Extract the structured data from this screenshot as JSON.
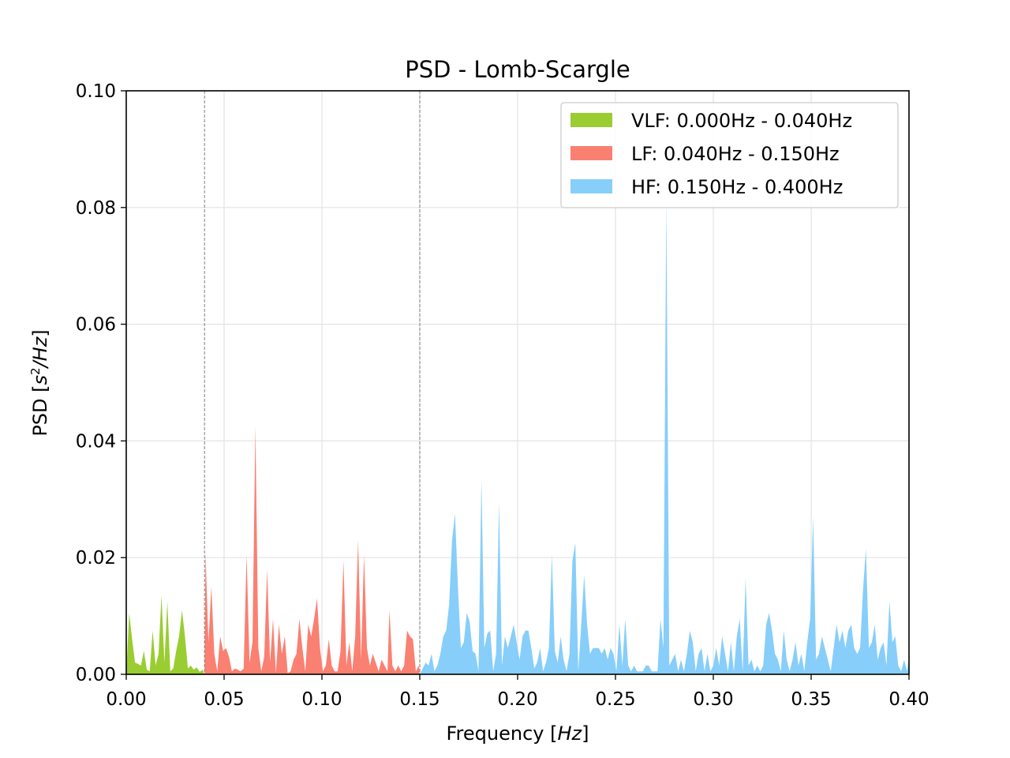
{
  "chart_data": {
    "type": "area",
    "title": "PSD - Lomb-Scargle",
    "xlabel_prefix": "Frequency [",
    "xlabel_unit": "Hz",
    "xlabel_suffix": "]",
    "ylabel_prefix": "PSD [",
    "ylabel_unit_base": "s",
    "ylabel_unit_exp": "2",
    "ylabel_unit_rest": "/Hz",
    "ylabel_suffix": "]",
    "xlim": [
      0.0,
      0.4
    ],
    "ylim": [
      0.0,
      0.1
    ],
    "x_ticks": [
      "0.00",
      "0.05",
      "0.10",
      "0.15",
      "0.20",
      "0.25",
      "0.30",
      "0.35",
      "0.40"
    ],
    "y_ticks": [
      "0.00",
      "0.02",
      "0.04",
      "0.06",
      "0.08",
      "0.10"
    ],
    "grid": true,
    "legend_position": "top-right",
    "band_boundaries": [
      0.04,
      0.15
    ],
    "series": [
      {
        "name": "VLF: 0.000Hz - 0.040Hz",
        "color": "#9acd32",
        "points": [
          [
            0.0,
            0.0
          ],
          [
            0.0015,
            0.0105
          ],
          [
            0.003,
            0.006
          ],
          [
            0.0045,
            0.002
          ],
          [
            0.006,
            0.0018
          ],
          [
            0.0075,
            0.0015
          ],
          [
            0.009,
            0.004
          ],
          [
            0.0105,
            0.0008
          ],
          [
            0.012,
            0.0005
          ],
          [
            0.0135,
            0.0075
          ],
          [
            0.015,
            0.0015
          ],
          [
            0.0165,
            0.0035
          ],
          [
            0.018,
            0.0135
          ],
          [
            0.0195,
            0.002
          ],
          [
            0.021,
            0.0125
          ],
          [
            0.0225,
            0.0005
          ],
          [
            0.024,
            0.001
          ],
          [
            0.0255,
            0.004
          ],
          [
            0.027,
            0.0065
          ],
          [
            0.0285,
            0.011
          ],
          [
            0.03,
            0.0065
          ],
          [
            0.0315,
            0.001
          ],
          [
            0.033,
            0.0015
          ],
          [
            0.0345,
            0.0008
          ],
          [
            0.036,
            0.0012
          ],
          [
            0.0375,
            0.0004
          ],
          [
            0.039,
            0.0008
          ],
          [
            0.04,
            0.0
          ]
        ]
      },
      {
        "name": "LF: 0.040Hz - 0.150Hz",
        "color": "#fa8072",
        "points": [
          [
            0.04,
            0.0
          ],
          [
            0.0405,
            0.021
          ],
          [
            0.042,
            0.0055
          ],
          [
            0.0435,
            0.015
          ],
          [
            0.045,
            0.0035
          ],
          [
            0.0465,
            0.0005
          ],
          [
            0.048,
            0.0065
          ],
          [
            0.0495,
            0.004
          ],
          [
            0.051,
            0.0045
          ],
          [
            0.0525,
            0.003
          ],
          [
            0.054,
            0.0005
          ],
          [
            0.0555,
            0.001
          ],
          [
            0.057,
            0.0008
          ],
          [
            0.0585,
            0.0005
          ],
          [
            0.06,
            0.001
          ],
          [
            0.0615,
            0.0205
          ],
          [
            0.063,
            0.002
          ],
          [
            0.0645,
            0.0055
          ],
          [
            0.066,
            0.0425
          ],
          [
            0.0675,
            0.0045
          ],
          [
            0.069,
            0.0005
          ],
          [
            0.0705,
            0.003
          ],
          [
            0.072,
            0.018
          ],
          [
            0.0735,
            0.002
          ],
          [
            0.075,
            0.0095
          ],
          [
            0.0765,
            0.0002
          ],
          [
            0.078,
            0.0085
          ],
          [
            0.0795,
            0.0035
          ],
          [
            0.081,
            0.0065
          ],
          [
            0.0825,
            0.0002
          ],
          [
            0.084,
            0.0005
          ],
          [
            0.0855,
            0.0025
          ],
          [
            0.087,
            0.0035
          ],
          [
            0.0885,
            0.0095
          ],
          [
            0.09,
            0.0045
          ],
          [
            0.0915,
            0.0005
          ],
          [
            0.093,
            0.0085
          ],
          [
            0.0945,
            0.0065
          ],
          [
            0.096,
            0.0095
          ],
          [
            0.0975,
            0.013
          ],
          [
            0.099,
            0.0045
          ],
          [
            0.1005,
            0.0005
          ],
          [
            0.102,
            0.0015
          ],
          [
            0.1035,
            0.006
          ],
          [
            0.105,
            0.0015
          ],
          [
            0.1065,
            0.0005
          ],
          [
            0.108,
            0.0005
          ],
          [
            0.1095,
            0.004
          ],
          [
            0.111,
            0.0195
          ],
          [
            0.1125,
            0.0015
          ],
          [
            0.114,
            0.0055
          ],
          [
            0.1155,
            0.0005
          ],
          [
            0.117,
            0.0065
          ],
          [
            0.1185,
            0.023
          ],
          [
            0.12,
            0.0025
          ],
          [
            0.1215,
            0.0205
          ],
          [
            0.123,
            0.0045
          ],
          [
            0.1245,
            0.0015
          ],
          [
            0.126,
            0.0035
          ],
          [
            0.1275,
            0.002
          ],
          [
            0.129,
            0.0005
          ],
          [
            0.1305,
            0.0025
          ],
          [
            0.132,
            0.0015
          ],
          [
            0.1335,
            0.0005
          ],
          [
            0.1345,
            0.011
          ],
          [
            0.136,
            0.0015
          ],
          [
            0.1375,
            0.0005
          ],
          [
            0.139,
            0.0015
          ],
          [
            0.1405,
            0.0005
          ],
          [
            0.142,
            0.0015
          ],
          [
            0.1435,
            0.0075
          ],
          [
            0.145,
            0.0065
          ],
          [
            0.1465,
            0.006
          ],
          [
            0.148,
            0.0005
          ],
          [
            0.1495,
            0.0015
          ],
          [
            0.15,
            0.0
          ]
        ]
      },
      {
        "name": "HF: 0.150Hz - 0.400Hz",
        "color": "#87cefa",
        "points": [
          [
            0.15,
            0.0
          ],
          [
            0.1515,
            0.001
          ],
          [
            0.153,
            0.002
          ],
          [
            0.1545,
            0.0015
          ],
          [
            0.156,
            0.0035
          ],
          [
            0.1575,
            0.0005
          ],
          [
            0.159,
            0.0015
          ],
          [
            0.1605,
            0.0035
          ],
          [
            0.162,
            0.0065
          ],
          [
            0.1635,
            0.0075
          ],
          [
            0.165,
            0.012
          ],
          [
            0.1665,
            0.023
          ],
          [
            0.168,
            0.0275
          ],
          [
            0.1695,
            0.015
          ],
          [
            0.171,
            0.0045
          ],
          [
            0.1725,
            0.0055
          ],
          [
            0.174,
            0.0105
          ],
          [
            0.1755,
            0.009
          ],
          [
            0.177,
            0.004
          ],
          [
            0.1785,
            0.0035
          ],
          [
            0.18,
            0.0005
          ],
          [
            0.1815,
            0.0335
          ],
          [
            0.183,
            0.0045
          ],
          [
            0.1845,
            0.007
          ],
          [
            0.186,
            0.0075
          ],
          [
            0.1875,
            0.0005
          ],
          [
            0.189,
            0.0035
          ],
          [
            0.1905,
            0.0295
          ],
          [
            0.192,
            0.0015
          ],
          [
            0.1935,
            0.0065
          ],
          [
            0.195,
            0.0045
          ],
          [
            0.1965,
            0.0065
          ],
          [
            0.198,
            0.0085
          ],
          [
            0.1995,
            0.0055
          ],
          [
            0.201,
            0.0025
          ],
          [
            0.2025,
            0.0065
          ],
          [
            0.204,
            0.0075
          ],
          [
            0.2055,
            0.0075
          ],
          [
            0.207,
            0.0045
          ],
          [
            0.2085,
            0.001
          ],
          [
            0.21,
            0.002
          ],
          [
            0.2115,
            0.0045
          ],
          [
            0.213,
            0.0005
          ],
          [
            0.2145,
            0.002
          ],
          [
            0.216,
            0.0045
          ],
          [
            0.2175,
            0.0205
          ],
          [
            0.219,
            0.004
          ],
          [
            0.2205,
            0.002
          ],
          [
            0.222,
            0.0065
          ],
          [
            0.2235,
            0.0025
          ],
          [
            0.225,
            0.0005
          ],
          [
            0.2265,
            0.0035
          ],
          [
            0.228,
            0.0195
          ],
          [
            0.2295,
            0.0225
          ],
          [
            0.231,
            0.0005
          ],
          [
            0.2325,
            0.0085
          ],
          [
            0.234,
            0.017
          ],
          [
            0.2355,
            0.0085
          ],
          [
            0.237,
            0.0035
          ],
          [
            0.2385,
            0.0045
          ],
          [
            0.24,
            0.0045
          ],
          [
            0.2415,
            0.0045
          ],
          [
            0.243,
            0.0035
          ],
          [
            0.2445,
            0.0045
          ],
          [
            0.246,
            0.0025
          ],
          [
            0.2475,
            0.0045
          ],
          [
            0.249,
            0.0035
          ],
          [
            0.2505,
            0.0005
          ],
          [
            0.252,
            0.0085
          ],
          [
            0.2535,
            0.0015
          ],
          [
            0.255,
            0.0095
          ],
          [
            0.2565,
            0.0015
          ],
          [
            0.258,
            0.0005
          ],
          [
            0.2595,
            0.0015
          ],
          [
            0.261,
            0.0005
          ],
          [
            0.2625,
            0.0005
          ],
          [
            0.264,
            0.0005
          ],
          [
            0.2655,
            0.0015
          ],
          [
            0.267,
            0.0015
          ],
          [
            0.2685,
            0.0005
          ],
          [
            0.27,
            0.0005
          ],
          [
            0.2715,
            0.0005
          ],
          [
            0.273,
            0.0095
          ],
          [
            0.2745,
            0.0045
          ],
          [
            0.276,
            0.0815
          ],
          [
            0.2775,
            0.0015
          ],
          [
            0.279,
            0.0025
          ],
          [
            0.2805,
            0.0035
          ],
          [
            0.282,
            0.0005
          ],
          [
            0.2835,
            0.0025
          ],
          [
            0.285,
            0.0005
          ],
          [
            0.2865,
            0.0035
          ],
          [
            0.288,
            0.0075
          ],
          [
            0.2895,
            0.0055
          ],
          [
            0.291,
            0.0005
          ],
          [
            0.2925,
            0.0035
          ],
          [
            0.294,
            0.0045
          ],
          [
            0.2955,
            0.0005
          ],
          [
            0.297,
            0.0035
          ],
          [
            0.2985,
            0.0005
          ],
          [
            0.3,
            0.0015
          ],
          [
            0.3015,
            0.0045
          ],
          [
            0.303,
            0.0015
          ],
          [
            0.3045,
            0.0065
          ],
          [
            0.306,
            0.0035
          ],
          [
            0.3075,
            0.0005
          ],
          [
            0.309,
            0.0055
          ],
          [
            0.3105,
            0.0005
          ],
          [
            0.312,
            0.0065
          ],
          [
            0.3135,
            0.0095
          ],
          [
            0.315,
            0.0005
          ],
          [
            0.3165,
            0.0165
          ],
          [
            0.318,
            0.0015
          ],
          [
            0.3195,
            0.0025
          ],
          [
            0.321,
            0.0005
          ],
          [
            0.3225,
            0.0015
          ],
          [
            0.324,
            0.0005
          ],
          [
            0.3255,
            0.0015
          ],
          [
            0.327,
            0.0085
          ],
          [
            0.3285,
            0.0105
          ],
          [
            0.33,
            0.0075
          ],
          [
            0.3315,
            0.0035
          ],
          [
            0.333,
            0.0025
          ],
          [
            0.3345,
            0.0005
          ],
          [
            0.336,
            0.0075
          ],
          [
            0.3375,
            0.0025
          ],
          [
            0.339,
            0.0005
          ],
          [
            0.3405,
            0.0025
          ],
          [
            0.342,
            0.0055
          ],
          [
            0.3435,
            0.0015
          ],
          [
            0.345,
            0.0035
          ],
          [
            0.3465,
            0.0005
          ],
          [
            0.348,
            0.0055
          ],
          [
            0.3495,
            0.0095
          ],
          [
            0.351,
            0.027
          ],
          [
            0.3525,
            0.0025
          ],
          [
            0.354,
            0.0035
          ],
          [
            0.3555,
            0.0065
          ],
          [
            0.357,
            0.0045
          ],
          [
            0.3585,
            0.0025
          ],
          [
            0.36,
            0.0005
          ],
          [
            0.3615,
            0.0045
          ],
          [
            0.363,
            0.0085
          ],
          [
            0.3645,
            0.0055
          ],
          [
            0.366,
            0.0075
          ],
          [
            0.3675,
            0.0045
          ],
          [
            0.369,
            0.0075
          ],
          [
            0.3705,
            0.0085
          ],
          [
            0.372,
            0.0045
          ],
          [
            0.3735,
            0.0035
          ],
          [
            0.375,
            0.0045
          ],
          [
            0.3765,
            0.0145
          ],
          [
            0.378,
            0.0215
          ],
          [
            0.3795,
            0.0045
          ],
          [
            0.381,
            0.0055
          ],
          [
            0.3825,
            0.0085
          ],
          [
            0.384,
            0.0025
          ],
          [
            0.3855,
            0.0045
          ],
          [
            0.387,
            0.0055
          ],
          [
            0.3885,
            0.0015
          ],
          [
            0.39,
            0.0125
          ],
          [
            0.3915,
            0.0055
          ],
          [
            0.393,
            0.0065
          ],
          [
            0.3945,
            0.0015
          ],
          [
            0.396,
            0.0005
          ],
          [
            0.3975,
            0.0025
          ],
          [
            0.399,
            0.0005
          ],
          [
            0.4,
            0.003
          ]
        ]
      }
    ]
  }
}
